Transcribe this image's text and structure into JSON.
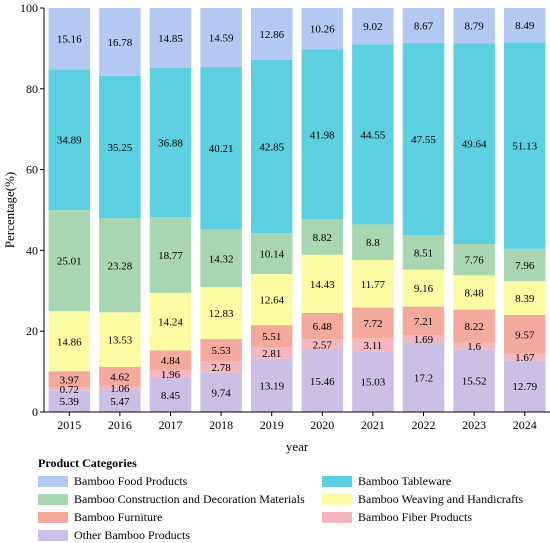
{
  "chart_data": {
    "type": "bar",
    "stacked": true,
    "categories": [
      "2015",
      "2016",
      "2017",
      "2018",
      "2019",
      "2020",
      "2021",
      "2022",
      "2023",
      "2024"
    ],
    "xlabel": "year",
    "ylabel": "Percentage(%)",
    "ylim": [
      0,
      100
    ],
    "yticks": [
      0,
      20,
      40,
      60,
      80,
      100
    ],
    "legend_title": "Product Categories",
    "legend_placement": "bottom",
    "legend_order": [
      "Bamboo Food Products",
      "Bamboo Tableware",
      "Bamboo Construction and Decoration Materials",
      "Bamboo Weaving and Handicrafts",
      "Bamboo Furniture",
      "Bamboo Fiber Products",
      "Other Bamboo Products"
    ],
    "series": [
      {
        "name": "Other Bamboo Products",
        "color": "#cbbfe5",
        "values": [
          5.39,
          5.47,
          8.45,
          9.74,
          13.19,
          15.46,
          15.03,
          17.2,
          15.52,
          12.79
        ]
      },
      {
        "name": "Bamboo Fiber Products",
        "color": "#f4b7c0",
        "values": [
          0.72,
          1.06,
          1.96,
          2.78,
          2.81,
          2.57,
          3.11,
          1.69,
          1.6,
          1.67
        ]
      },
      {
        "name": "Bamboo Furniture",
        "color": "#f4a99d",
        "values": [
          3.97,
          4.62,
          4.84,
          5.53,
          5.51,
          6.48,
          7.72,
          7.21,
          8.22,
          9.57
        ]
      },
      {
        "name": "Bamboo Weaving and Handicrafts",
        "color": "#fbfba4",
        "values": [
          14.86,
          13.53,
          14.24,
          12.83,
          12.64,
          14.43,
          11.77,
          9.16,
          8.48,
          8.39
        ]
      },
      {
        "name": "Bamboo Construction and Decoration Materials",
        "color": "#a8d6b0",
        "values": [
          25.01,
          23.28,
          18.77,
          14.32,
          10.14,
          8.82,
          8.8,
          8.51,
          7.76,
          7.96
        ]
      },
      {
        "name": "Bamboo Tableware",
        "color": "#5ccfe0",
        "values": [
          34.89,
          35.25,
          36.88,
          40.21,
          42.85,
          41.98,
          44.55,
          47.55,
          49.64,
          51.13
        ]
      },
      {
        "name": "Bamboo Food Products",
        "color": "#b4c9f1",
        "values": [
          15.16,
          16.78,
          14.85,
          14.59,
          12.86,
          10.26,
          9.02,
          8.67,
          8.79,
          8.49
        ]
      }
    ]
  }
}
